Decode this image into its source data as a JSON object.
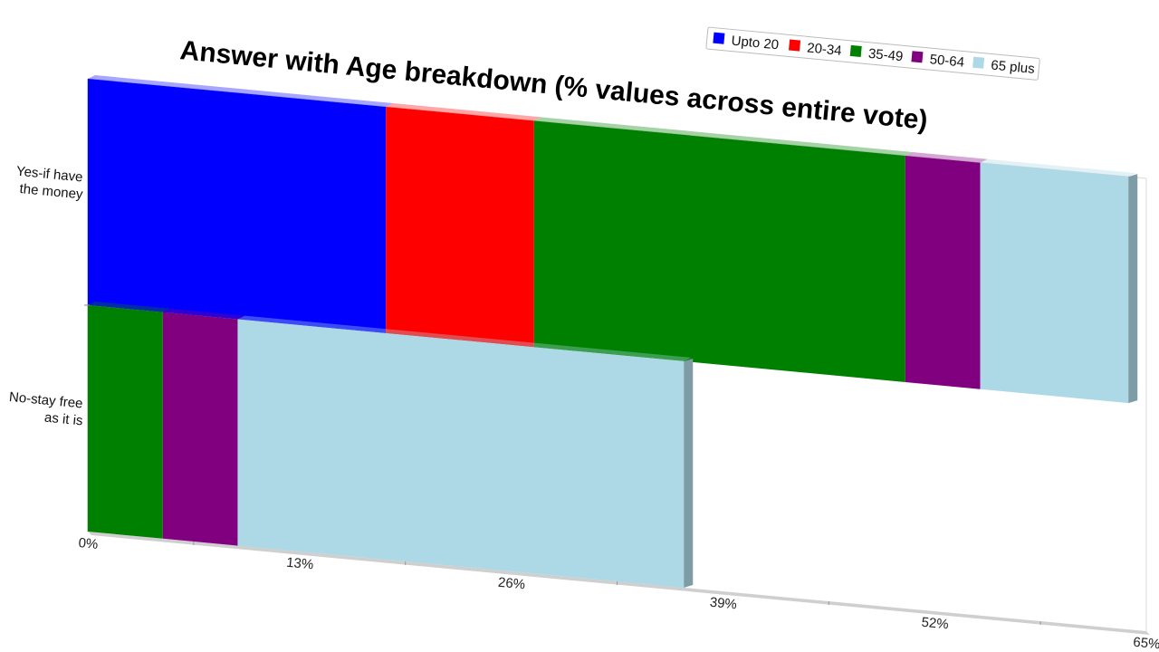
{
  "chart_data": {
    "type": "bar",
    "orientation": "horizontal",
    "stacked": true,
    "title": "Answer with Age breakdown (% values across entire vote)",
    "categories": [
      "Yes-if have the money",
      "No-stay free as it is"
    ],
    "category_lines": [
      [
        "Yes-if have",
        "the money"
      ],
      [
        "No-stay free",
        "as it is"
      ]
    ],
    "xticks": [
      "0%",
      "13%",
      "26%",
      "39%",
      "52%",
      "65%"
    ],
    "xlim": [
      0,
      65
    ],
    "legend_position": "top-right",
    "series": [
      {
        "name": "Upto 20",
        "color": "#0000ff",
        "values": [
          18.3,
          0
        ]
      },
      {
        "name": "20-34",
        "color": "#ff0000",
        "values": [
          9.1,
          0
        ]
      },
      {
        "name": "35-49",
        "color": "#008000",
        "values": [
          22.8,
          4.6
        ]
      },
      {
        "name": "50-64",
        "color": "#800080",
        "values": [
          4.6,
          4.6
        ]
      },
      {
        "name": "65 plus",
        "color": "#add8e6",
        "values": [
          9.1,
          27.4
        ]
      }
    ]
  }
}
